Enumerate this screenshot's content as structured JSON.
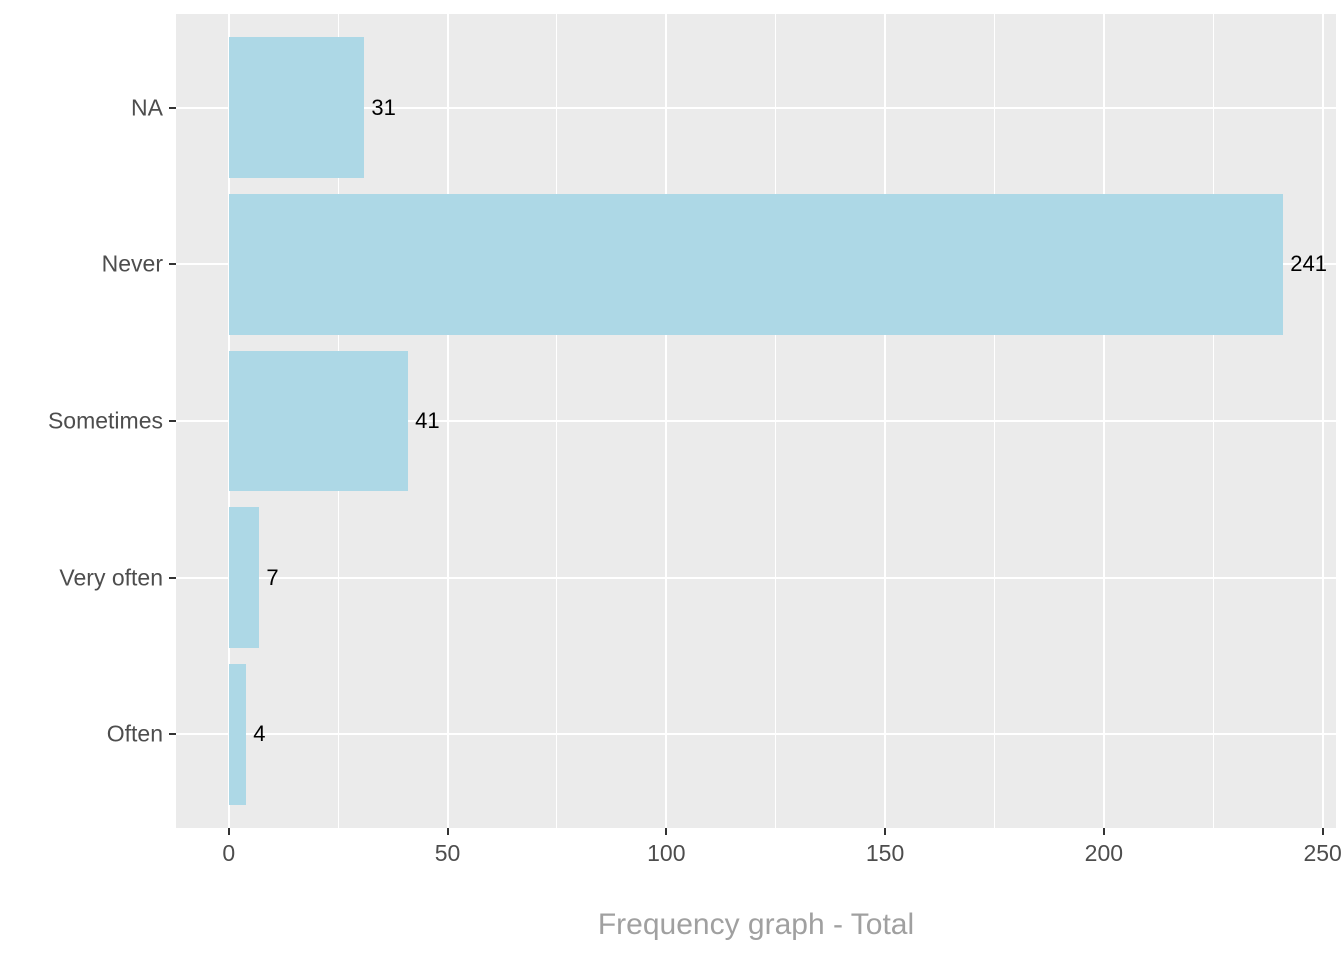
{
  "chart_data": {
    "type": "bar",
    "orientation": "horizontal",
    "title": "Frequency graph - Total",
    "categories": [
      "NA",
      "Never",
      "Sometimes",
      "Very often",
      "Often"
    ],
    "values": [
      31,
      241,
      41,
      7,
      4
    ],
    "value_labels": [
      "31",
      "241",
      "41",
      "7",
      "4"
    ],
    "x_ticks": [
      0,
      50,
      100,
      150,
      200,
      250
    ],
    "x_tick_labels": [
      "0",
      "50",
      "100",
      "150",
      "200",
      "250"
    ],
    "x_minor_step": 25,
    "xlim": [
      0,
      250
    ],
    "xlabel": "Frequency graph - Total",
    "ylabel": "",
    "legend": "none",
    "grid": "on",
    "colors": {
      "bar_fill": "#ADD8E6",
      "panel_background": "#EBEBEB",
      "gridline": "#FFFFFF",
      "axis_text": "#4D4D4D",
      "tick_mark": "#333333",
      "bar_label": "#000000",
      "title": "#A0A0A0",
      "figure_background": "#FFFFFF"
    }
  }
}
